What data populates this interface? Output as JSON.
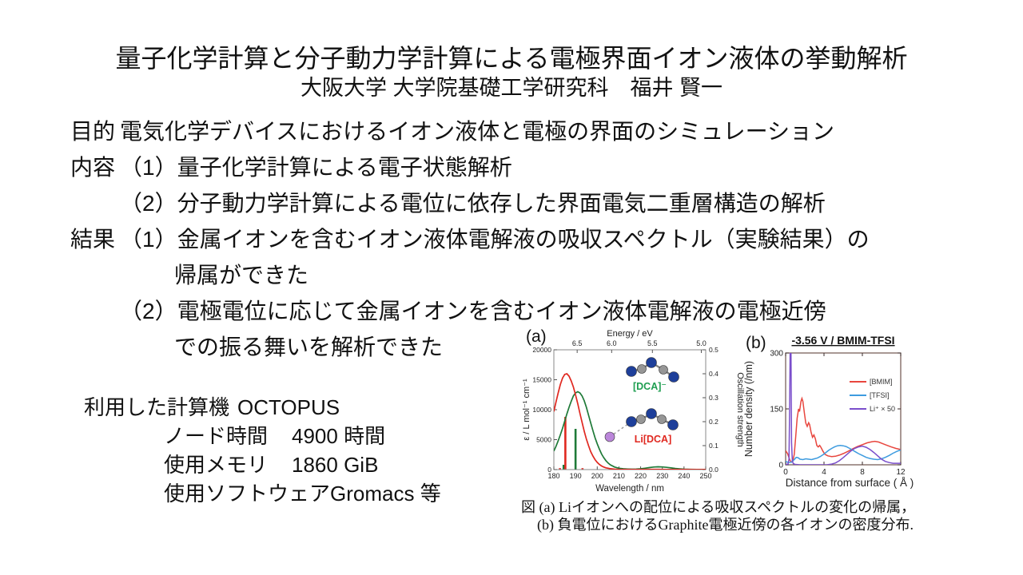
{
  "slide": {
    "title": "量子化学計算と分子動力学計算による電極界面イオン液体の挙動解析",
    "subtitle": "大阪大学 大学院基礎工学研究科　福井 賢一",
    "body": [
      {
        "label": "目的",
        "text": "電気化学デバイスにおけるイオン液体と電極の界面のシミュレーション"
      },
      {
        "label": "内容",
        "text": "（1）量子化学計算による電子状態解析"
      },
      {
        "label": "",
        "text": "（2）分子動力学計算による電位に依存した界面電気二重層構造の解析"
      },
      {
        "label": "結果",
        "text": "（1）金属イオンを含むイオン液体電解液の吸収スペクトル（実験結果）の"
      },
      {
        "label": "",
        "text": "帰属ができた"
      },
      {
        "label": "",
        "text": "（2）電極電位に応じて金属イオンを含むイオン液体電解液の電極近傍"
      },
      {
        "label": "",
        "text": "での振る舞いを解析できた"
      }
    ],
    "compute": {
      "machine_label": "利用した計算機",
      "machine_value": "OCTOPUS",
      "items": [
        {
          "name": "ノード時間",
          "value": "4900 時間"
        },
        {
          "name": "使用メモリ",
          "value": "1860 GiB"
        },
        {
          "name": "使用ソフトウェア",
          "value": "Gromacs 等"
        }
      ]
    },
    "caption": {
      "line1": "図 (a) Liイオンへの配位による吸収スペクトルの変化の帰属，",
      "line2": "(b) 負電位におけるGraphite電極近傍の各イオンの密度分布."
    }
  },
  "chart_data": [
    {
      "type": "line",
      "panel": "(a)",
      "x_axis": {
        "label": "Wavelength / nm",
        "range": [
          180,
          250
        ],
        "ticks": [
          180,
          190,
          200,
          210,
          220,
          230,
          240,
          250
        ]
      },
      "top_axis": {
        "label": "Energy / eV",
        "ticks": [
          6.5,
          6.0,
          5.5,
          5.0
        ]
      },
      "y_axis": {
        "label": "ε / L mol⁻¹ cm⁻¹",
        "range": [
          0,
          20000
        ],
        "ticks": [
          0,
          5000,
          10000,
          15000,
          20000
        ]
      },
      "y2_axis": {
        "label": "Oscillation strength",
        "range": [
          0,
          0.5
        ],
        "ticks": [
          0,
          0.1,
          0.2,
          0.3,
          0.4,
          0.5
        ]
      },
      "series": [
        {
          "name": "[DCA]⁻",
          "color": "#1f7a38",
          "points": [
            [
              180,
              3100
            ],
            [
              181,
              3900
            ],
            [
              182,
              4800
            ],
            [
              183,
              5800
            ],
            [
              184,
              6900
            ],
            [
              185,
              8100
            ],
            [
              186,
              9300
            ],
            [
              187,
              10400
            ],
            [
              188,
              11400
            ],
            [
              189,
              12300
            ],
            [
              190,
              12800
            ],
            [
              191,
              13000
            ],
            [
              192,
              12800
            ],
            [
              193,
              12300
            ],
            [
              194,
              11500
            ],
            [
              195,
              10400
            ],
            [
              196,
              9100
            ],
            [
              197,
              7800
            ],
            [
              198,
              6500
            ],
            [
              199,
              5300
            ],
            [
              200,
              4300
            ],
            [
              201,
              3400
            ],
            [
              202,
              2600
            ],
            [
              203,
              2000
            ],
            [
              204,
              1500
            ],
            [
              205,
              1100
            ],
            [
              206,
              800
            ],
            [
              208,
              420
            ],
            [
              210,
              230
            ],
            [
              212,
              130
            ],
            [
              214,
              90
            ],
            [
              216,
              70
            ],
            [
              218,
              80
            ],
            [
              220,
              130
            ],
            [
              222,
              220
            ],
            [
              224,
              330
            ],
            [
              226,
              430
            ],
            [
              228,
              470
            ],
            [
              230,
              440
            ],
            [
              232,
              370
            ],
            [
              234,
              280
            ],
            [
              236,
              190
            ],
            [
              238,
              120
            ],
            [
              240,
              70
            ],
            [
              243,
              35
            ],
            [
              246,
              18
            ],
            [
              250,
              8
            ]
          ]
        },
        {
          "name": "Li[DCA]",
          "color": "#e02820",
          "points": [
            [
              180,
              9700
            ],
            [
              181,
              11300
            ],
            [
              182,
              12800
            ],
            [
              183,
              14200
            ],
            [
              184,
              15300
            ],
            [
              185,
              15900
            ],
            [
              186,
              16000
            ],
            [
              187,
              15600
            ],
            [
              188,
              14800
            ],
            [
              189,
              13800
            ],
            [
              190,
              12500
            ],
            [
              191,
              11000
            ],
            [
              192,
              9400
            ],
            [
              193,
              7900
            ],
            [
              194,
              6400
            ],
            [
              195,
              5100
            ],
            [
              196,
              4000
            ],
            [
              197,
              3000
            ],
            [
              198,
              2250
            ],
            [
              199,
              1650
            ],
            [
              200,
              1200
            ],
            [
              201,
              850
            ],
            [
              202,
              600
            ],
            [
              203,
              420
            ],
            [
              204,
              290
            ],
            [
              206,
              140
            ],
            [
              208,
              70
            ],
            [
              210,
              40
            ],
            [
              213,
              20
            ],
            [
              216,
              15
            ],
            [
              220,
              20
            ],
            [
              224,
              35
            ],
            [
              228,
              40
            ],
            [
              232,
              30
            ],
            [
              236,
              15
            ],
            [
              240,
              10
            ],
            [
              245,
              5
            ],
            [
              250,
              5
            ]
          ]
        }
      ],
      "bars": [
        {
          "series": "[DCA]⁻",
          "color": "#1f7a38",
          "x": 184.5,
          "strength": 0.02
        },
        {
          "series": "Li[DCA]",
          "color": "#e02820",
          "x": 185.3,
          "strength": 0.22
        },
        {
          "series": "[DCA]⁻",
          "color": "#1f7a38",
          "x": 190.0,
          "strength": 0.17
        },
        {
          "series": "Li[DCA]",
          "color": "#e02820",
          "x": 182.8,
          "strength": 0.006
        },
        {
          "series": "Li[DCA]",
          "color": "#e02820",
          "x": 193.2,
          "strength": 0.006
        }
      ],
      "atom_colors": {
        "N": "#1e3f9a",
        "C": "#969696",
        "Li": "#bb86da"
      },
      "molecules": [
        {
          "label": "[DCA]⁻",
          "label_color": "#1e9e50",
          "label_xy": [
            163,
            86
          ],
          "atoms": [
            [
              140,
              63,
              "N"
            ],
            [
              153,
              60,
              "C"
            ],
            [
              165,
              52,
              "N"
            ],
            [
              180,
              61,
              "C"
            ],
            [
              193,
              70,
              "N"
            ]
          ],
          "bonds": [
            [
              0,
              1
            ],
            [
              1,
              2
            ],
            [
              2,
              3
            ],
            [
              3,
              4
            ]
          ]
        },
        {
          "label": "Li[DCA]",
          "label_color": "#e02820",
          "label_xy": [
            167,
            152
          ],
          "atoms": [
            [
              140,
              126,
              "N"
            ],
            [
              152,
              123,
              "C"
            ],
            [
              165,
              116,
              "N"
            ],
            [
              178,
              123,
              "C"
            ],
            [
              192,
              130,
              "N"
            ],
            [
              113,
              145,
              "Li"
            ]
          ],
          "bonds": [
            [
              0,
              1
            ],
            [
              1,
              2
            ],
            [
              2,
              3
            ],
            [
              3,
              4
            ]
          ],
          "dashed_bonds": [
            [
              5,
              0
            ]
          ]
        }
      ]
    },
    {
      "type": "line",
      "panel": "(b)",
      "title": "-3.56 V / BMIM-TFSI",
      "x_axis": {
        "label": "Distance from surface ( Å )",
        "range": [
          0,
          12
        ],
        "ticks": [
          0,
          4,
          8,
          12
        ]
      },
      "y_axis": {
        "label": "Number density (/nm)",
        "range": [
          0,
          300
        ],
        "ticks": [
          0,
          150,
          300
        ]
      },
      "legend": [
        "[BMIM]",
        "[TFSI]",
        "Li⁺ × 50"
      ],
      "series": [
        {
          "name": "[BMIM]",
          "color": "#e8463e",
          "points": [
            [
              0,
              38
            ],
            [
              0.2,
              30
            ],
            [
              0.45,
              12
            ],
            [
              0.6,
              7
            ],
            [
              0.75,
              10
            ],
            [
              0.9,
              28
            ],
            [
              1.05,
              75
            ],
            [
              1.2,
              125
            ],
            [
              1.35,
              150
            ],
            [
              1.45,
              143
            ],
            [
              1.6,
              170
            ],
            [
              1.7,
              178
            ],
            [
              1.8,
              170
            ],
            [
              1.95,
              140
            ],
            [
              2.1,
              112
            ],
            [
              2.25,
              103
            ],
            [
              2.4,
              113
            ],
            [
              2.5,
              108
            ],
            [
              2.65,
              88
            ],
            [
              2.8,
              74
            ],
            [
              2.95,
              80
            ],
            [
              3.1,
              70
            ],
            [
              3.25,
              52
            ],
            [
              3.4,
              48
            ],
            [
              3.55,
              52
            ],
            [
              3.7,
              46
            ],
            [
              3.9,
              36
            ],
            [
              4.1,
              28
            ],
            [
              4.4,
              24
            ],
            [
              4.8,
              22
            ],
            [
              5.2,
              23
            ],
            [
              5.6,
              26
            ],
            [
              6.0,
              30
            ],
            [
              6.5,
              36
            ],
            [
              7.0,
              43
            ],
            [
              7.5,
              49
            ],
            [
              8.0,
              54
            ],
            [
              8.5,
              59
            ],
            [
              9.0,
              62
            ],
            [
              9.3,
              63
            ],
            [
              9.7,
              61
            ],
            [
              10.1,
              57
            ],
            [
              10.5,
              53
            ],
            [
              11.0,
              48
            ],
            [
              11.5,
              44
            ],
            [
              12,
              41
            ]
          ]
        },
        {
          "name": "[TFSI]",
          "color": "#3d9bdf",
          "points": [
            [
              0,
              9
            ],
            [
              0.3,
              6
            ],
            [
              0.6,
              7
            ],
            [
              0.9,
              14
            ],
            [
              1.1,
              20
            ],
            [
              1.3,
              19
            ],
            [
              1.5,
              15
            ],
            [
              1.8,
              14
            ],
            [
              2.1,
              16
            ],
            [
              2.4,
              15
            ],
            [
              2.7,
              14
            ],
            [
              3.0,
              16
            ],
            [
              3.3,
              18
            ],
            [
              3.6,
              22
            ],
            [
              3.9,
              27
            ],
            [
              4.2,
              33
            ],
            [
              4.5,
              39
            ],
            [
              4.8,
              44
            ],
            [
              5.1,
              48
            ],
            [
              5.4,
              51
            ],
            [
              5.7,
              52
            ],
            [
              6.0,
              51
            ],
            [
              6.3,
              49
            ],
            [
              6.6,
              45
            ],
            [
              6.9,
              41
            ],
            [
              7.2,
              36
            ],
            [
              7.6,
              30
            ],
            [
              8.0,
              25
            ],
            [
              8.4,
              20
            ],
            [
              8.8,
              17
            ],
            [
              9.2,
              15
            ],
            [
              9.6,
              14
            ],
            [
              10.0,
              16
            ],
            [
              10.4,
              20
            ],
            [
              10.8,
              25
            ],
            [
              11.2,
              31
            ],
            [
              11.6,
              36
            ],
            [
              12,
              40
            ]
          ]
        },
        {
          "name": "Li⁺ × 50",
          "color": "#7a4ecb",
          "points": [
            [
              0,
              1
            ],
            [
              0.25,
              2
            ],
            [
              0.35,
              15
            ],
            [
              0.42,
              150
            ],
            [
              0.48,
              340
            ],
            [
              0.55,
              340
            ],
            [
              0.62,
              60
            ],
            [
              0.7,
              10
            ],
            [
              0.8,
              3
            ],
            [
              1.0,
              1
            ],
            [
              1.5,
              0
            ],
            [
              2.5,
              0
            ],
            [
              3.5,
              0
            ],
            [
              4.3,
              0
            ],
            [
              4.8,
              2
            ],
            [
              5.2,
              5
            ],
            [
              5.6,
              11
            ],
            [
              6.0,
              19
            ],
            [
              6.4,
              28
            ],
            [
              6.8,
              37
            ],
            [
              7.2,
              44
            ],
            [
              7.6,
              48
            ],
            [
              8.0,
              50
            ],
            [
              8.4,
              47
            ],
            [
              8.8,
              41
            ],
            [
              9.2,
              33
            ],
            [
              9.6,
              24
            ],
            [
              10.0,
              15
            ],
            [
              10.4,
              9
            ],
            [
              10.8,
              6
            ],
            [
              11.2,
              4
            ],
            [
              11.6,
              4
            ],
            [
              12,
              4
            ]
          ]
        }
      ]
    }
  ]
}
